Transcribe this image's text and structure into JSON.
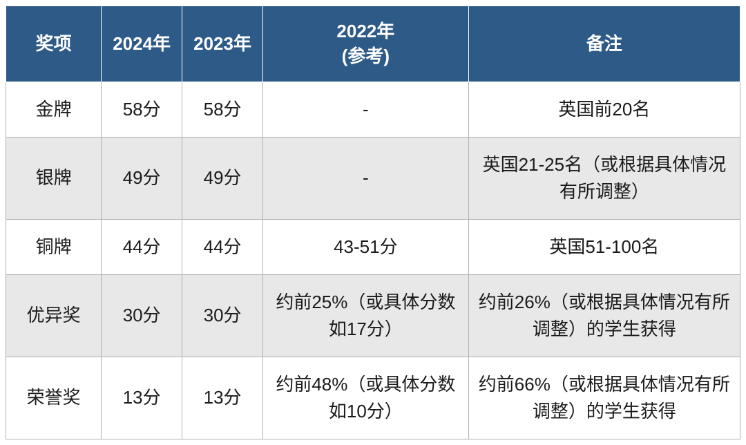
{
  "table": {
    "type": "table",
    "header_background": "#2d5a87",
    "header_text_color": "#ffffff",
    "row_alt_background": "#e8e8e8",
    "row_background": "#ffffff",
    "border_color": "#b0b0b0",
    "font_size": 26,
    "columns": [
      {
        "key": "award",
        "label": "奖项",
        "width": "13%"
      },
      {
        "key": "y2024",
        "label": "2024年",
        "width": "11%"
      },
      {
        "key": "y2023",
        "label": "2023年",
        "width": "11%"
      },
      {
        "key": "y2022",
        "label": "2022年\n(参考)",
        "width": "28%"
      },
      {
        "key": "note",
        "label": "备注",
        "width": "37%"
      }
    ],
    "rows": [
      {
        "award": "金牌",
        "y2024": "58分",
        "y2023": "58分",
        "y2022": "-",
        "note": "英国前20名"
      },
      {
        "award": "银牌",
        "y2024": "49分",
        "y2023": "49分",
        "y2022": "-",
        "note": "英国21-25名（或根据具体情况有所调整）"
      },
      {
        "award": "铜牌",
        "y2024": "44分",
        "y2023": "44分",
        "y2022": "43-51分",
        "note": "英国51-100名"
      },
      {
        "award": "优异奖",
        "y2024": "30分",
        "y2023": "30分",
        "y2022": "约前25%（或具体分数如17分）",
        "note": "约前26%（或根据具体情况有所调整）的学生获得"
      },
      {
        "award": "荣誉奖",
        "y2024": "13分",
        "y2023": "13分",
        "y2022": "约前48%（或具体分数如10分）",
        "note": "约前66%（或根据具体情况有所调整）的学生获得"
      }
    ]
  }
}
